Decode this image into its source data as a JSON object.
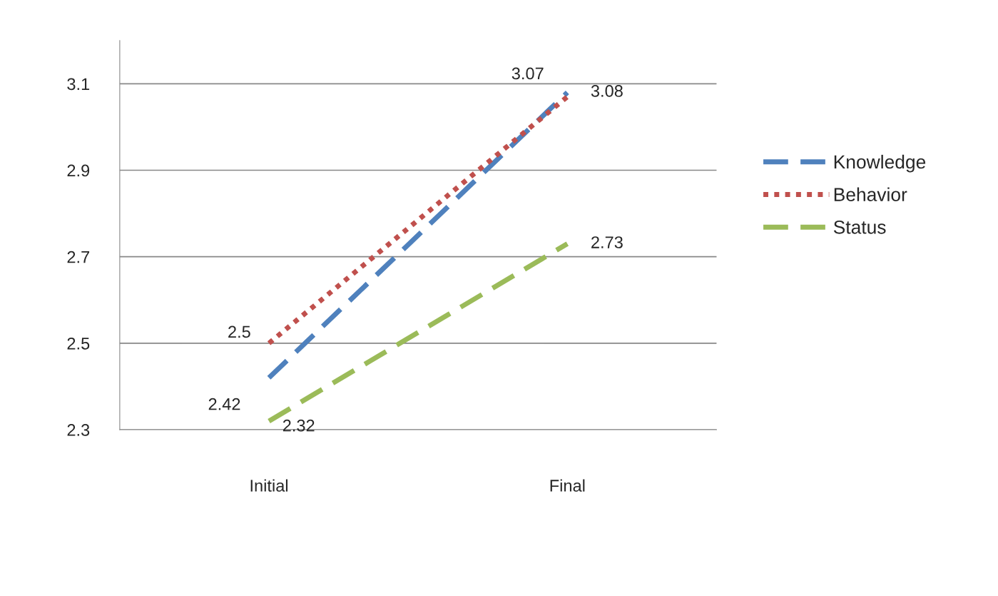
{
  "chart_data": {
    "type": "line",
    "categories": [
      "Initial",
      "Final"
    ],
    "series": [
      {
        "name": "Knowledge",
        "color": "#4f81bd",
        "values": [
          2.42,
          3.08
        ],
        "line_style": "dashed"
      },
      {
        "name": "Behavior",
        "color": "#c0504d",
        "values": [
          2.5,
          3.07
        ],
        "line_style": "dotted"
      },
      {
        "name": "Status",
        "color": "#9bbb59",
        "values": [
          2.32,
          2.73
        ],
        "line_style": "dashed"
      }
    ],
    "ylim": [
      2.3,
      3.2
    ],
    "yticks": [
      2.3,
      2.5,
      2.7,
      2.9,
      3.1
    ],
    "grid": "y",
    "legend": "right",
    "data_labels": true
  }
}
